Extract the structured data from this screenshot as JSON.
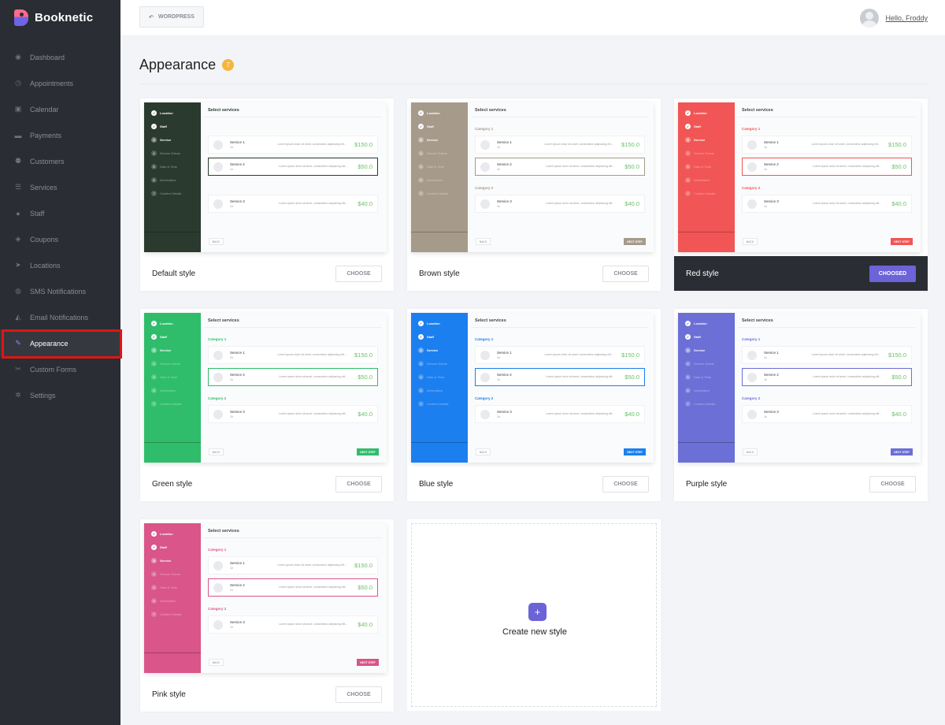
{
  "app": {
    "name": "Booknetic"
  },
  "sidebar": {
    "items": [
      {
        "label": "Dashboard",
        "icon": "dashboard-icon",
        "glyph": "◉"
      },
      {
        "label": "Appointments",
        "icon": "clock-icon",
        "glyph": "◷"
      },
      {
        "label": "Calendar",
        "icon": "calendar-icon",
        "glyph": "▣"
      },
      {
        "label": "Payments",
        "icon": "credit-card-icon",
        "glyph": "▬"
      },
      {
        "label": "Customers",
        "icon": "users-icon",
        "glyph": "⚉"
      },
      {
        "label": "Services",
        "icon": "list-icon",
        "glyph": "☰"
      },
      {
        "label": "Staff",
        "icon": "user-icon",
        "glyph": "●"
      },
      {
        "label": "Coupons",
        "icon": "tag-icon",
        "glyph": "◈"
      },
      {
        "label": "Locations",
        "icon": "location-arrow-icon",
        "glyph": "➤"
      },
      {
        "label": "SMS Notifications",
        "icon": "chat-icon",
        "glyph": "◍"
      },
      {
        "label": "Email Notifications",
        "icon": "bell-icon",
        "glyph": "◭"
      },
      {
        "label": "Appearance",
        "icon": "brush-icon",
        "glyph": "✎"
      },
      {
        "label": "Custom Forms",
        "icon": "wrench-icon",
        "glyph": "✂"
      },
      {
        "label": "Settings",
        "icon": "gear-icon",
        "glyph": "✲"
      }
    ]
  },
  "topbar": {
    "back_label": "WORDPRESS",
    "back_icon": "back-arrow-icon",
    "user_greeting": "Hello, Froddy"
  },
  "page": {
    "title": "Appearance",
    "count": "7"
  },
  "preview_text": {
    "steps": [
      "Location",
      "Staff",
      "Service",
      "Service Extras",
      "Date & Time",
      "Information",
      "Confirm Details"
    ],
    "panel_title": "Select services",
    "category1": "Category 1",
    "category2": "Category 2",
    "services": [
      {
        "name": "Service 1",
        "sub": "1h",
        "price": "$150.0"
      },
      {
        "name": "Service 2",
        "sub": "1h",
        "price": "$50.0"
      },
      {
        "name": "Service 3",
        "sub": "1h",
        "price": "$40.0"
      }
    ],
    "desc": "Lorem ipsum dolor sit amet, consectetur adipiscing elit...",
    "back": "BACK",
    "next": "NEXT STEP"
  },
  "styles": [
    {
      "name": "Default style",
      "color": "#2b3a2f",
      "button": "CHOOSE",
      "chosen": false
    },
    {
      "name": "Brown style",
      "color": "#a69a8b",
      "button": "CHOOSE",
      "chosen": false
    },
    {
      "name": "Red style",
      "color": "#f25555",
      "button": "CHOOSED",
      "chosen": true
    },
    {
      "name": "Green style",
      "color": "#2fbd6b",
      "button": "CHOOSE",
      "chosen": false
    },
    {
      "name": "Blue style",
      "color": "#1c7ff0",
      "button": "CHOOSE",
      "chosen": false
    },
    {
      "name": "Purple style",
      "color": "#6b6fd6",
      "button": "CHOOSE",
      "chosen": false
    },
    {
      "name": "Pink style",
      "color": "#d9558a",
      "button": "CHOOSE",
      "chosen": false
    }
  ],
  "create": {
    "label": "Create new style",
    "icon": "plus-icon",
    "glyph": "+"
  }
}
